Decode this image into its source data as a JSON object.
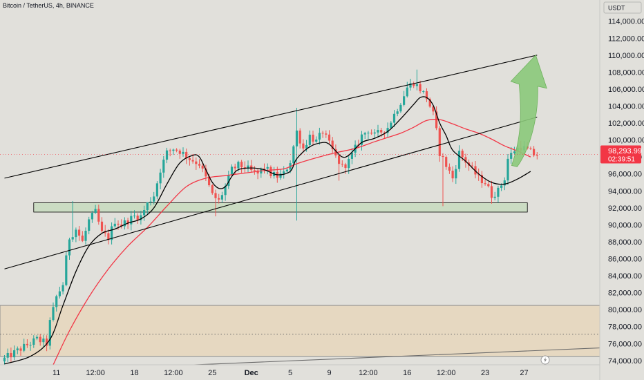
{
  "header": {
    "title": "Bitcoin / TetherUS, 4h, BINANCE",
    "currency_button": "USDT"
  },
  "price_tag": {
    "price": "98,293.99",
    "countdown": "02:39:51",
    "value": 98293.99,
    "color": "#f23645"
  },
  "colors": {
    "background": "#e1e0db",
    "up": "#26a69a",
    "down": "#ef5350",
    "ma_fast": "#000000",
    "ma_slow": "#f23645",
    "support_zone": "#c9dcc0",
    "demand_zone": "#e6d6bc",
    "arrow": "#8bc97a"
  },
  "icons": {
    "replay": "lightning-icon"
  },
  "chart_data": {
    "type": "candlestick",
    "title": "Bitcoin / TetherUS, 4h, BINANCE",
    "ylim": [
      73500,
      116500
    ],
    "yticks": [
      "114,000.00",
      "112,000.00",
      "110,000.00",
      "108,000.00",
      "106,000.00",
      "104,000.00",
      "102,000.00",
      "100,000.00",
      "98,000.00",
      "96,000.00",
      "94,000.00",
      "92,000.00",
      "90,000.00",
      "88,000.00",
      "86,000.00",
      "84,000.00",
      "82,000.00",
      "80,000.00",
      "78,000.00",
      "76,000.00",
      "74,000.00"
    ],
    "ytick_values": [
      114000,
      112000,
      110000,
      108000,
      106000,
      104000,
      102000,
      100000,
      98000,
      96000,
      94000,
      92000,
      90000,
      88000,
      86000,
      84000,
      82000,
      80000,
      78000,
      76000,
      74000
    ],
    "xticks": [
      {
        "label": "11",
        "bar": 16
      },
      {
        "label": "12:00",
        "bar": 28
      },
      {
        "label": "18",
        "bar": 40
      },
      {
        "label": "12:00",
        "bar": 52
      },
      {
        "label": "25",
        "bar": 64
      },
      {
        "label": "Dec",
        "bar": 76
      },
      {
        "label": "5",
        "bar": 88
      },
      {
        "label": "9",
        "bar": 100
      },
      {
        "label": "12:00",
        "bar": 112
      },
      {
        "label": "16",
        "bar": 124
      },
      {
        "label": "12:00",
        "bar": 136
      },
      {
        "label": "23",
        "bar": 148
      },
      {
        "label": "27",
        "bar": 160
      }
    ],
    "bar_count": 166,
    "anchors": [
      [
        0,
        74200
      ],
      [
        5,
        75400
      ],
      [
        10,
        76500
      ],
      [
        13,
        76000
      ],
      [
        14,
        78500
      ],
      [
        16,
        81500
      ],
      [
        18,
        83000
      ],
      [
        19,
        86000
      ],
      [
        20,
        88500
      ],
      [
        22,
        89500
      ],
      [
        24,
        88000
      ],
      [
        26,
        90500
      ],
      [
        28,
        91500
      ],
      [
        30,
        89000
      ],
      [
        32,
        88500
      ],
      [
        34,
        90500
      ],
      [
        36,
        90000
      ],
      [
        38,
        90500
      ],
      [
        40,
        91000
      ],
      [
        42,
        91000
      ],
      [
        44,
        92500
      ],
      [
        46,
        93500
      ],
      [
        48,
        96500
      ],
      [
        50,
        98500
      ],
      [
        52,
        99000
      ],
      [
        54,
        98700
      ],
      [
        57,
        97800
      ],
      [
        60,
        97200
      ],
      [
        62,
        95500
      ],
      [
        64,
        93500
      ],
      [
        66,
        92800
      ],
      [
        68,
        94500
      ],
      [
        70,
        96500
      ],
      [
        72,
        97000
      ],
      [
        74,
        96800
      ],
      [
        76,
        96300
      ],
      [
        78,
        96000
      ],
      [
        80,
        96800
      ],
      [
        82,
        96000
      ],
      [
        84,
        95700
      ],
      [
        86,
        96000
      ],
      [
        88,
        97500
      ],
      [
        90,
        101000
      ],
      [
        92,
        99000
      ],
      [
        94,
        100500
      ],
      [
        96,
        99800
      ],
      [
        98,
        101000
      ],
      [
        100,
        99500
      ],
      [
        102,
        98000
      ],
      [
        104,
        96800
      ],
      [
        106,
        97500
      ],
      [
        108,
        99000
      ],
      [
        110,
        100500
      ],
      [
        112,
        101200
      ],
      [
        114,
        100500
      ],
      [
        116,
        101000
      ],
      [
        118,
        101500
      ],
      [
        120,
        103000
      ],
      [
        122,
        104500
      ],
      [
        124,
        106200
      ],
      [
        126,
        106800
      ],
      [
        128,
        106000
      ],
      [
        130,
        105000
      ],
      [
        132,
        103000
      ],
      [
        133,
        101000
      ],
      [
        134,
        98500
      ],
      [
        136,
        97000
      ],
      [
        138,
        95500
      ],
      [
        140,
        98500
      ],
      [
        142,
        97500
      ],
      [
        144,
        96500
      ],
      [
        146,
        95500
      ],
      [
        148,
        95000
      ],
      [
        150,
        93500
      ],
      [
        152,
        94000
      ],
      [
        154,
        95500
      ],
      [
        155,
        97800
      ],
      [
        157,
        98800
      ],
      [
        159,
        99200
      ],
      [
        161,
        98800
      ],
      [
        163,
        98293.99
      ]
    ],
    "extremes": [
      {
        "bar": 21,
        "high": 92800
      },
      {
        "bar": 44,
        "high": 92500
      },
      {
        "bar": 65,
        "low": 91000
      },
      {
        "bar": 90,
        "high": 103800,
        "low": 90500
      },
      {
        "bar": 103,
        "low": 95200
      },
      {
        "bar": 127,
        "high": 108300
      },
      {
        "bar": 135,
        "low": 92200
      },
      {
        "bar": 150,
        "low": 92500
      },
      {
        "bar": 159,
        "high": 99900
      }
    ],
    "ma_fast_points": [
      [
        0,
        73600
      ],
      [
        8,
        74500
      ],
      [
        14,
        76500
      ],
      [
        18,
        80500
      ],
      [
        22,
        84500
      ],
      [
        26,
        87500
      ],
      [
        30,
        89000
      ],
      [
        34,
        89500
      ],
      [
        38,
        90200
      ],
      [
        42,
        90700
      ],
      [
        46,
        92000
      ],
      [
        50,
        94800
      ],
      [
        54,
        97300
      ],
      [
        58,
        98200
      ],
      [
        60,
        98000
      ],
      [
        62,
        96500
      ],
      [
        64,
        95000
      ],
      [
        66,
        94300
      ],
      [
        68,
        94500
      ],
      [
        70,
        95700
      ],
      [
        72,
        96500
      ],
      [
        76,
        96700
      ],
      [
        80,
        96500
      ],
      [
        84,
        95900
      ],
      [
        88,
        96300
      ],
      [
        90,
        97800
      ],
      [
        94,
        99200
      ],
      [
        98,
        99700
      ],
      [
        100,
        99500
      ],
      [
        102,
        98700
      ],
      [
        104,
        98000
      ],
      [
        106,
        98200
      ],
      [
        110,
        99700
      ],
      [
        114,
        100200
      ],
      [
        118,
        101000
      ],
      [
        122,
        102500
      ],
      [
        126,
        104200
      ],
      [
        128,
        105000
      ],
      [
        130,
        105000
      ],
      [
        132,
        104100
      ],
      [
        134,
        102000
      ],
      [
        136,
        100500
      ],
      [
        138,
        98800
      ],
      [
        142,
        97500
      ],
      [
        146,
        96000
      ],
      [
        150,
        95000
      ],
      [
        154,
        94800
      ],
      [
        158,
        95400
      ],
      [
        162,
        96300
      ]
    ],
    "ma_slow_points": [
      [
        15,
        73500
      ],
      [
        20,
        77500
      ],
      [
        26,
        81500
      ],
      [
        32,
        84800
      ],
      [
        38,
        87500
      ],
      [
        44,
        89700
      ],
      [
        50,
        92200
      ],
      [
        56,
        94500
      ],
      [
        62,
        95500
      ],
      [
        68,
        95800
      ],
      [
        74,
        96100
      ],
      [
        80,
        96400
      ],
      [
        86,
        96600
      ],
      [
        90,
        97200
      ],
      [
        96,
        97900
      ],
      [
        102,
        98500
      ],
      [
        108,
        99000
      ],
      [
        114,
        99800
      ],
      [
        118,
        100300
      ],
      [
        122,
        100800
      ],
      [
        126,
        101500
      ],
      [
        130,
        102300
      ],
      [
        134,
        102400
      ],
      [
        138,
        101900
      ],
      [
        142,
        101300
      ],
      [
        146,
        100800
      ],
      [
        150,
        100100
      ],
      [
        154,
        99300
      ],
      [
        158,
        98700
      ],
      [
        162,
        98000
      ]
    ],
    "trendlines": [
      {
        "name": "channel-upper",
        "from": [
          0,
          95500
        ],
        "to": [
          164,
          110000
        ]
      },
      {
        "name": "channel-lower",
        "from": [
          0,
          84800
        ],
        "to": [
          164,
          102700
        ]
      },
      {
        "name": "range-lower",
        "from": [
          -4,
          72500
        ],
        "to": [
          184,
          75500
        ]
      }
    ],
    "zones": [
      {
        "name": "support-zone",
        "from_bar": 9,
        "to_bar": 161,
        "low": 91500,
        "high": 92600
      },
      {
        "name": "demand-zone",
        "from_bar": -4,
        "to_bar": 184,
        "low": 74500,
        "high": 80500
      }
    ],
    "dotted_level": {
      "value": 77100
    },
    "forecast_arrow": {
      "from": [
        157,
        97000
      ],
      "to": [
        164,
        110000
      ]
    },
    "grid": false,
    "legend": "none"
  }
}
